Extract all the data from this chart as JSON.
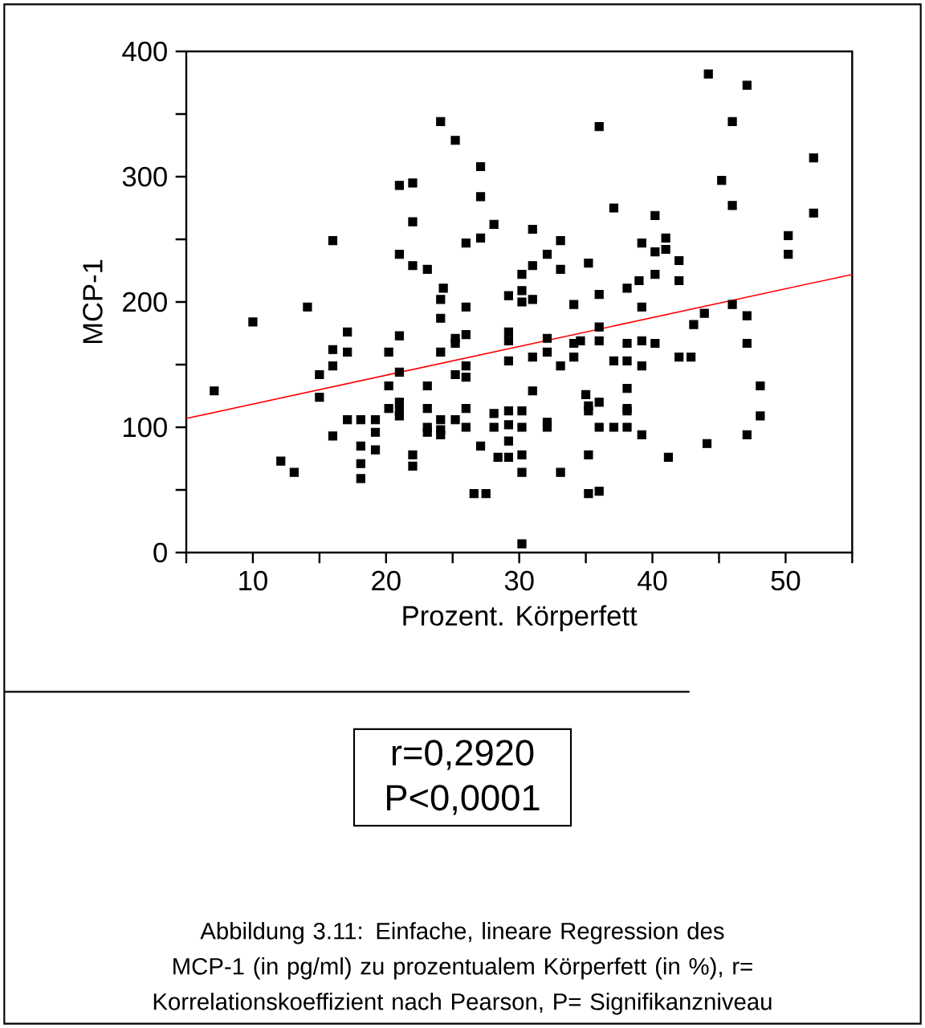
{
  "chart_data": {
    "type": "scatter",
    "xlabel": "Prozent. Körperfett",
    "ylabel": "MCP-1",
    "xlim": [
      5,
      55
    ],
    "ylim": [
      0,
      400
    ],
    "xticks": [
      {
        "value": 5,
        "label": null
      },
      10,
      {
        "value": 15,
        "label": null
      },
      20,
      {
        "value": 25,
        "label": null
      },
      30,
      {
        "value": 35,
        "label": null
      },
      40,
      {
        "value": 45,
        "label": null
      },
      50,
      {
        "value": 55,
        "label": null
      }
    ],
    "yticks": [
      0,
      {
        "value": 50,
        "label": null
      },
      100,
      {
        "value": 150,
        "label": null
      },
      200,
      {
        "value": 250,
        "label": null
      },
      300,
      {
        "value": 350,
        "label": null
      },
      400
    ],
    "grid": false,
    "series": [
      {
        "color": "#000000",
        "marker": "square",
        "x": [
          24.1,
          25.2,
          27.1,
          21.0,
          22.0,
          27.1,
          22.0,
          28.1,
          16.0,
          26.0,
          27.1,
          21.0,
          22.0,
          23.1,
          24.3,
          24.1,
          26.0,
          14.1,
          44.2,
          47.1,
          36.0,
          46.0,
          52.1,
          45.2,
          46.0,
          52.1,
          37.1,
          40.2,
          31.0,
          33.1,
          50.2,
          50.2,
          39.2,
          41.0,
          41.0,
          40.2,
          32.1,
          31.0,
          33.1,
          35.2,
          42.0,
          30.2,
          40.2,
          39.0,
          42.0,
          38.1,
          29.2,
          30.2,
          31.0,
          36.0,
          34.1,
          39.2,
          46.0,
          30.2,
          10.0,
          24.1,
          17.1,
          21.0,
          16.0,
          17.1,
          20.2,
          24.1,
          25.2,
          25.2,
          26.0,
          16.0,
          15.0,
          21.0,
          25.2,
          26.0,
          26.0,
          7.1,
          15.0,
          20.2,
          23.1,
          20.2,
          21.0,
          21.0,
          21.0,
          23.1,
          26.0,
          28.1,
          17.1,
          18.1,
          19.2,
          24.1,
          25.2,
          23.1,
          23.1,
          24.1,
          24.1,
          26.0,
          28.1,
          16.0,
          19.2,
          18.1,
          19.2,
          27.1,
          28.4,
          22.0,
          22.0,
          12.1,
          13.1,
          18.1,
          18.1,
          26.6,
          27.5,
          47.1,
          43.9,
          43.1,
          29.2,
          29.2,
          32.1,
          34.1,
          34.6,
          36.0,
          36.0,
          38.1,
          39.2,
          40.2,
          47.1,
          29.2,
          31.0,
          32.1,
          33.1,
          34.1,
          37.1,
          38.1,
          39.2,
          42.0,
          42.9,
          31.0,
          35.0,
          35.2,
          35.2,
          36.0,
          38.1,
          38.1,
          38.1,
          29.2,
          30.2,
          32.1,
          32.1,
          29.2,
          30.2,
          36.0,
          37.1,
          38.1,
          39.2,
          47.1,
          48.1,
          48.1,
          29.2,
          44.1,
          29.2,
          30.2,
          35.2,
          41.2,
          30.2,
          33.1,
          35.2,
          36.0,
          30.2
        ],
        "values": [
          344,
          329,
          308,
          293,
          295,
          284,
          264,
          262,
          249,
          247,
          251,
          238,
          229,
          226,
          211,
          202,
          196,
          196,
          382,
          373,
          340,
          344,
          315,
          297,
          277,
          271,
          275,
          269,
          258,
          249,
          253,
          238,
          247,
          251,
          242,
          240,
          238,
          229,
          226,
          231,
          233,
          222,
          222,
          217,
          217,
          211,
          205,
          209,
          202,
          206,
          198,
          196,
          198,
          200,
          184,
          187,
          176,
          173,
          162,
          160,
          160,
          160,
          171,
          167,
          174,
          149,
          142,
          144,
          142,
          149,
          140,
          129,
          124,
          133,
          133,
          115,
          120,
          113,
          109,
          115,
          115,
          111,
          106,
          106,
          106,
          106,
          106,
          100,
          96,
          98,
          94,
          100,
          100,
          93,
          96,
          85,
          82,
          85,
          76,
          78,
          69,
          73,
          64,
          71,
          59,
          47,
          47,
          189,
          191,
          182,
          176,
          169,
          171,
          167,
          169,
          180,
          169,
          167,
          169,
          167,
          167,
          153,
          156,
          160,
          149,
          156,
          153,
          153,
          149,
          156,
          156,
          129,
          126,
          117,
          113,
          120,
          131,
          115,
          113,
          113,
          113,
          104,
          100,
          102,
          100,
          100,
          100,
          100,
          94,
          94,
          133,
          109,
          89,
          87,
          76,
          78,
          78,
          76,
          64,
          64,
          47,
          49,
          7
        ]
      },
      {
        "type": "line",
        "color": "#ff0000",
        "marker": "none",
        "line_style": "solid",
        "x": [
          5,
          55
        ],
        "values": [
          107,
          222
        ]
      }
    ],
    "annotations": [
      "r=0,2920",
      "P<0,0001",
      "Abbildung 3.11: Einfache, lineare Regression des MCP-1 (in pg/ml) zu prozentualem Körperfett (in %), r= Korrelationskoeffizient nach Pearson, P= Signifikanzniveau"
    ]
  }
}
